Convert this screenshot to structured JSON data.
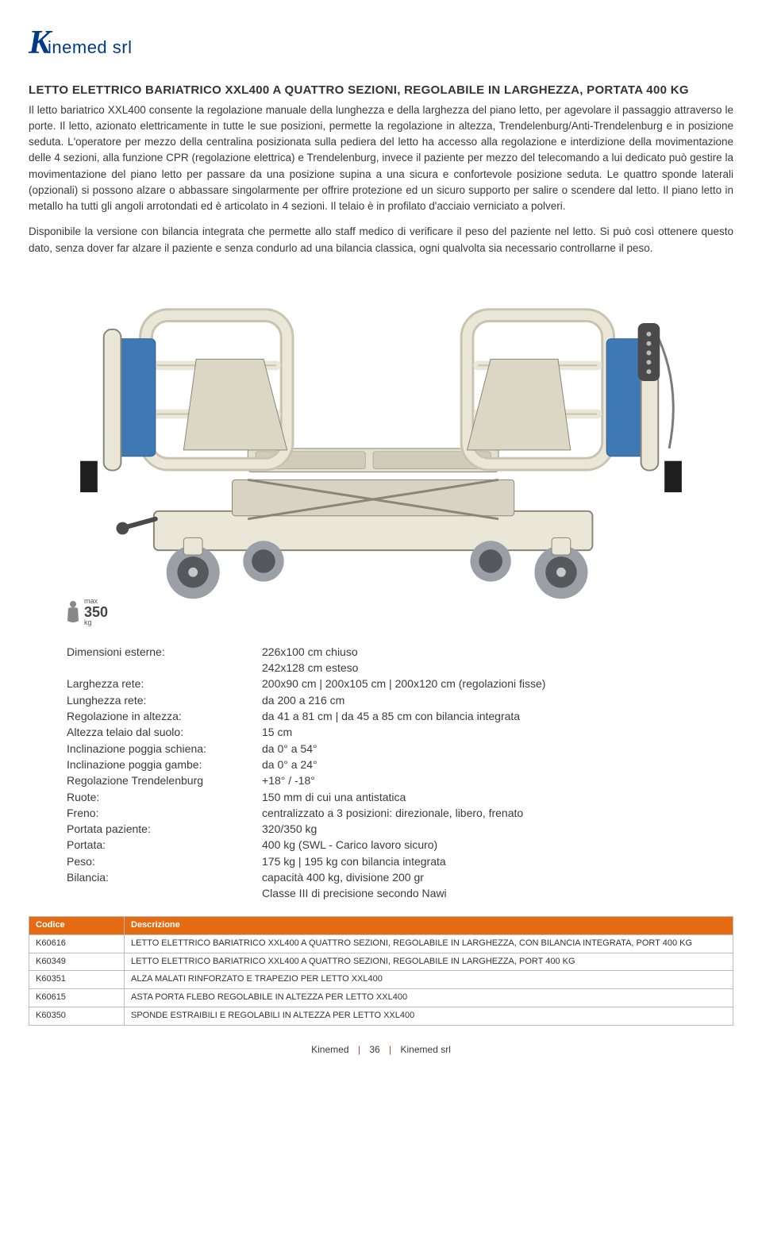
{
  "logo": {
    "k": "K",
    "rest": "inemed srl"
  },
  "title": "LETTO ELETTRICO BARIATRICO XXL400 A QUATTRO SEZIONI, REGOLABILE IN LARGHEZZA, PORTATA 400 KG",
  "paragraph1": "Il letto bariatrico XXL400 consente la regolazione manuale della lunghezza e della larghezza del piano letto, per agevolare il passaggio attraverso le porte. Il letto, azionato elettricamente in tutte le sue posizioni, permette la regolazione in altezza, Trendelenburg/Anti-Trendelenburg e in posizione seduta. L'operatore per mezzo della centralina posizionata sulla pediera del letto ha accesso alla regolazione e interdizione della movimentazione delle 4 sezioni, alla funzione CPR (regolazione elettrica) e Trendelenburg, invece il paziente per mezzo del telecomando a lui dedicato può gestire la movimentazione del piano letto per passare da una posizione supina a una sicura e confortevole posizione seduta. Le quattro sponde laterali (opzionali) si possono alzare o abbassare singolarmente per offrire protezione ed un sicuro supporto per salire o scendere dal letto. Il piano letto in metallo ha tutti gli angoli arrotondati ed è articolato in 4 sezioni. Il telaio è in profilato d'acciaio verniciato a polveri.",
  "paragraph2": "Disponibile la versione con bilancia integrata che permette allo staff medico di verificare il peso del paziente nel letto. Si può così ottenere questo dato, senza dover far alzare il paziente e senza condurlo ad una bilancia classica, ogni qualvolta sia necessario controllarne il peso.",
  "weight_badge": {
    "max": "max",
    "value": "350",
    "unit": "kg"
  },
  "specs": [
    {
      "label": "Dimensioni esterne:",
      "value": "226x100 cm chiuso"
    },
    {
      "label": "",
      "value": "242x128 cm esteso"
    },
    {
      "label": "Larghezza rete:",
      "value": "200x90 cm | 200x105 cm | 200x120 cm (regolazioni fisse)"
    },
    {
      "label": "Lunghezza rete:",
      "value": "da 200 a 216 cm"
    },
    {
      "label": "Regolazione in altezza:",
      "value": "da 41 a 81 cm | da 45 a 85 cm con bilancia integrata"
    },
    {
      "label": "Altezza telaio dal suolo:",
      "value": "15 cm"
    },
    {
      "label": "Inclinazione poggia schiena:",
      "value": "da 0° a 54°"
    },
    {
      "label": "Inclinazione poggia gambe:",
      "value": "da 0° a 24°"
    },
    {
      "label": "Regolazione Trendelenburg",
      "value": "+18° / -18°"
    },
    {
      "label": "Ruote:",
      "value": "150 mm di cui una antistatica"
    },
    {
      "label": "Freno:",
      "value": "centralizzato a 3 posizioni: direzionale, libero, frenato"
    },
    {
      "label": "Portata paziente:",
      "value": "320/350 kg"
    },
    {
      "label": "Portata:",
      "value": "400 kg (SWL - Carico lavoro sicuro)"
    },
    {
      "label": "Peso:",
      "value": "175 kg | 195 kg con bilancia integrata"
    },
    {
      "label": "Bilancia:",
      "value": "capacità 400 kg, divisione 200 gr"
    },
    {
      "label": "",
      "value": "Classe III di precisione secondo Nawi"
    }
  ],
  "codes_table": {
    "headers": [
      "Codice",
      "Descrizione"
    ],
    "rows": [
      [
        "K60616",
        "LETTO ELETTRICO BARIATRICO XXL400 A QUATTRO SEZIONI, REGOLABILE IN LARGHEZZA, CON BILANCIA INTEGRATA, PORT 400 KG"
      ],
      [
        "K60349",
        "LETTO ELETTRICO BARIATRICO XXL400 A QUATTRO SEZIONI, REGOLABILE IN LARGHEZZA, PORT 400 KG"
      ],
      [
        "K60351",
        "ALZA MALATI RINFORZATO E TRAPEZIO PER LETTO XXL400"
      ],
      [
        "K60615",
        "ASTA PORTA FLEBO REGOLABILE IN ALTEZZA PER LETTO XXL400"
      ],
      [
        "K60350",
        "SPONDE ESTRAIBILI E REGOLABILI IN ALTEZZA PER LETTO XXL400"
      ]
    ]
  },
  "footer": {
    "left": "Kinemed",
    "page": "36",
    "right": "Kinemed srl"
  },
  "colors": {
    "brand_blue": "#003a8a",
    "table_header": "#e46b12",
    "bed_frame": "#eae6d8",
    "bed_frame_dark": "#c9c4b0",
    "bed_panel": "#3f79b5",
    "bed_metal": "#c8c8c8",
    "bed_shadow": "#8a8677",
    "wheel_gray": "#9aa0a6",
    "wheel_dark": "#55595e",
    "remote": "#4a4a4a"
  }
}
